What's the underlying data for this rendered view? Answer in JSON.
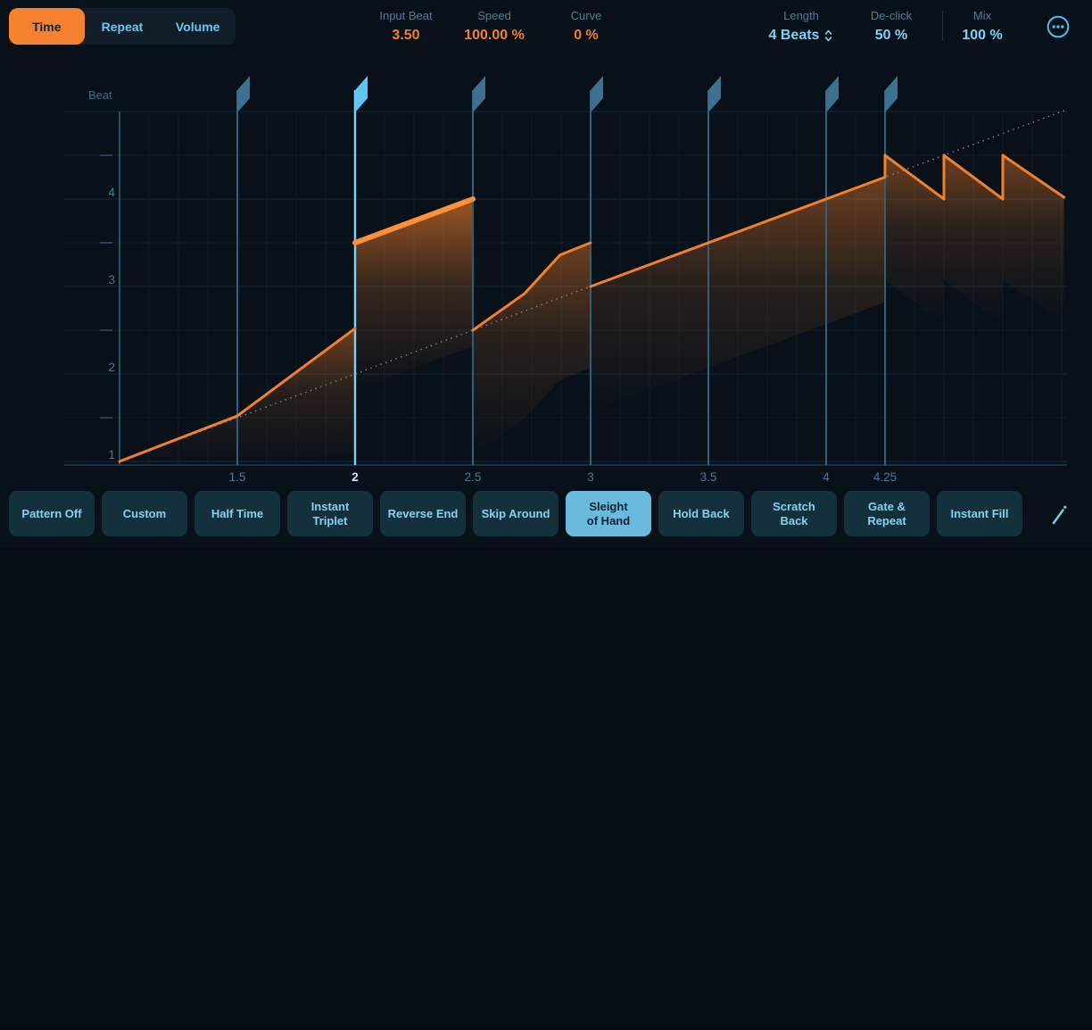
{
  "tabs": {
    "items": [
      {
        "label": "Time",
        "active": true
      },
      {
        "label": "Repeat",
        "active": false
      },
      {
        "label": "Volume",
        "active": false
      }
    ]
  },
  "params": {
    "items": [
      {
        "label": "Input Beat",
        "value": "3.50",
        "color": "orange"
      },
      {
        "label": "Speed",
        "value": "100.00 %",
        "color": "orange"
      },
      {
        "label": "Curve",
        "value": "0 %",
        "color": "orange"
      },
      {
        "label": "Length",
        "value": "4 Beats",
        "color": "blue",
        "stepper": "up-down-stepper-icon"
      },
      {
        "label": "De-click",
        "value": "50 %",
        "color": "blue"
      },
      {
        "label": "Mix",
        "value": "100 %",
        "color": "blue"
      }
    ]
  },
  "icons": {
    "menu": "ellipsis-circle-icon",
    "edit": "pencil-icon",
    "length_stepper": "up-down-stepper-icon"
  },
  "chart_data": {
    "type": "line",
    "ylabel": "Beat",
    "x_range": [
      0.9,
      5.02
    ],
    "y_range": [
      0.95,
      5.0
    ],
    "grid": "on",
    "x_axis": {
      "ticks": [
        {
          "beat": 1.5,
          "label": "1.5",
          "active": false
        },
        {
          "beat": 2,
          "label": "2",
          "active": true
        },
        {
          "beat": 2.5,
          "label": "2.5",
          "active": false
        },
        {
          "beat": 3,
          "label": "3",
          "active": false
        },
        {
          "beat": 3.5,
          "label": "3.5",
          "active": false
        },
        {
          "beat": 4,
          "label": "4",
          "active": false
        },
        {
          "beat": 4.25,
          "label": "4.25",
          "active": false
        }
      ]
    },
    "y_axis": {
      "ticks": [
        1,
        2,
        3,
        4
      ],
      "half_ticks": [
        1.5,
        2.5,
        3.5,
        4.5
      ]
    },
    "markers": [
      {
        "beat": 1.5,
        "active": false
      },
      {
        "beat": 2,
        "active": true
      },
      {
        "beat": 2.5,
        "active": false
      },
      {
        "beat": 3,
        "active": false
      },
      {
        "beat": 3.5,
        "active": false
      },
      {
        "beat": 4,
        "active": false
      },
      {
        "beat": 4.25,
        "active": false
      }
    ],
    "identity_line": {
      "from": [
        1,
        1
      ],
      "to": [
        5.02,
        5.02
      ],
      "style": "dotted"
    },
    "segments": [
      {
        "name": "rise-1",
        "points": [
          [
            1,
            1
          ],
          [
            1.5,
            1.52
          ],
          [
            2,
            2.52
          ]
        ],
        "highlight": false
      },
      {
        "name": "boost-highlight",
        "points": [
          [
            2,
            3.5
          ],
          [
            2.5,
            4.0
          ]
        ],
        "highlight": true
      },
      {
        "name": "rise-2",
        "points": [
          [
            2.5,
            2.5
          ],
          [
            2.72,
            2.92
          ],
          [
            2.87,
            3.36
          ],
          [
            3,
            3.5
          ]
        ],
        "highlight": false
      },
      {
        "name": "rise-3",
        "points": [
          [
            3,
            3.0
          ],
          [
            4.25,
            4.25
          ]
        ],
        "highlight": false
      },
      {
        "name": "tooth-1",
        "points": [
          [
            4.25,
            4.5
          ],
          [
            4.5,
            4.0
          ]
        ],
        "highlight": false
      },
      {
        "name": "tooth-2",
        "points": [
          [
            4.5,
            4.5
          ],
          [
            4.75,
            4.0
          ]
        ],
        "highlight": false
      },
      {
        "name": "tooth-3",
        "points": [
          [
            4.75,
            4.5
          ],
          [
            5.01,
            4.02
          ]
        ],
        "highlight": false
      }
    ],
    "jump_edges": [
      {
        "beat": 4.25,
        "from": 4.25,
        "to": 4.5
      },
      {
        "beat": 4.5,
        "from": 4.0,
        "to": 4.5
      },
      {
        "beat": 4.75,
        "from": 4.0,
        "to": 4.5
      }
    ],
    "colors": {
      "line": "#f07f2e",
      "line_highlight": "#ff8f38",
      "fill": "#f57e2a",
      "marker": "#2f5f7a",
      "marker_active": "#7fd0f3",
      "flag": "#3c7192",
      "flag_active": "#5cc6f4",
      "identity": "#8b98a2",
      "grid": "#0e1b26",
      "grid_major": "#15293a",
      "axis": "#27536c",
      "baseline": "#1e3a4c",
      "tick_label": "#44799a",
      "tick_label_active": "#c4ebfc",
      "ylabel_color": "#3a6f8c"
    }
  },
  "patterns": {
    "selected_index": 6,
    "items": [
      {
        "label": "Pattern Off"
      },
      {
        "label": "Custom"
      },
      {
        "label": "Half Time"
      },
      {
        "label": "Instant\nTriplet"
      },
      {
        "label": "Reverse End"
      },
      {
        "label": "Skip Around"
      },
      {
        "label": "Sleight\nof Hand"
      },
      {
        "label": "Hold Back"
      },
      {
        "label": "Scratch\nBack"
      },
      {
        "label": "Gate &\nRepeat"
      },
      {
        "label": "Instant Fill"
      }
    ]
  }
}
